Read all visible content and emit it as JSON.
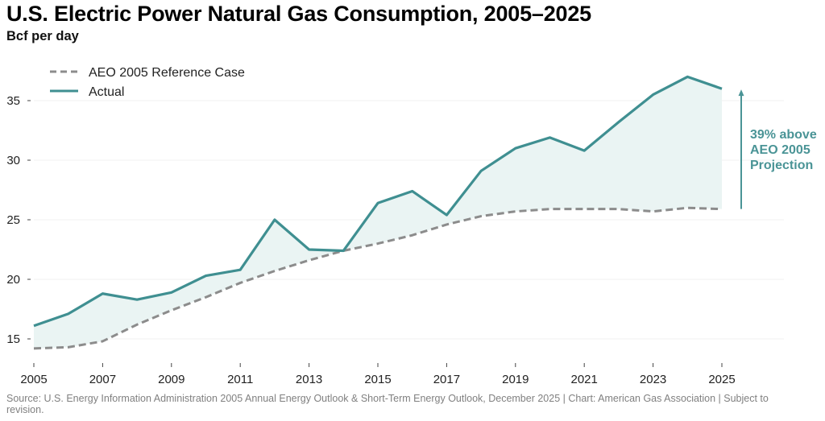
{
  "chart_data": {
    "type": "line",
    "title": "U.S. Electric Power Natural Gas Consumption, 2005–2025",
    "subtitle": "Bcf per day",
    "xlabel": "",
    "ylabel": "Bcf per day",
    "x": [
      2005,
      2006,
      2007,
      2008,
      2009,
      2010,
      2011,
      2012,
      2013,
      2014,
      2015,
      2016,
      2017,
      2018,
      2019,
      2020,
      2021,
      2022,
      2023,
      2024,
      2025
    ],
    "xlim": [
      2005,
      2025
    ],
    "ylim": [
      13.5,
      37.5
    ],
    "x_ticks": [
      2005,
      2007,
      2009,
      2011,
      2013,
      2015,
      2017,
      2019,
      2021,
      2023,
      2025
    ],
    "x_tick_labels": [
      "2005",
      "2007",
      "2009",
      "2011",
      "2013",
      "2015",
      "2017",
      "2019",
      "2021",
      "2023",
      "2025"
    ],
    "y_ticks": [
      15,
      20,
      25,
      30,
      35
    ],
    "y_tick_labels": [
      "15",
      "20",
      "25",
      "30",
      "35"
    ],
    "grid": "horizontal",
    "legend_position": "top-left",
    "series": [
      {
        "name": "AEO 2005 Reference Case",
        "style": "dashed",
        "color": "#8c8c8c",
        "values": [
          14.2,
          14.3,
          14.8,
          16.2,
          17.4,
          18.5,
          19.7,
          20.7,
          21.6,
          22.4,
          23.0,
          23.7,
          24.6,
          25.3,
          25.7,
          25.9,
          25.9,
          25.9,
          25.7,
          26.0,
          25.9
        ]
      },
      {
        "name": "Actual",
        "style": "solid",
        "color": "#3f8f91",
        "values": [
          16.1,
          17.1,
          18.8,
          18.3,
          18.9,
          20.3,
          20.8,
          25.0,
          22.5,
          22.4,
          26.4,
          27.4,
          25.4,
          29.1,
          31.0,
          31.9,
          30.8,
          33.2,
          35.5,
          37.0,
          36.0
        ]
      }
    ],
    "fill_between": {
      "color": "#eaf4f3"
    },
    "annotation": {
      "lines": [
        "39% above",
        "AEO 2005",
        "Projection"
      ],
      "color": "#4a9496",
      "arrow_from_value": 25.9,
      "arrow_to_value": 35.8
    }
  },
  "source": "Source: U.S. Energy Information Administration 2005 Annual Energy Outlook & Short-Term Energy Outlook, December 2025 | Chart: American Gas Association | Subject to revision."
}
